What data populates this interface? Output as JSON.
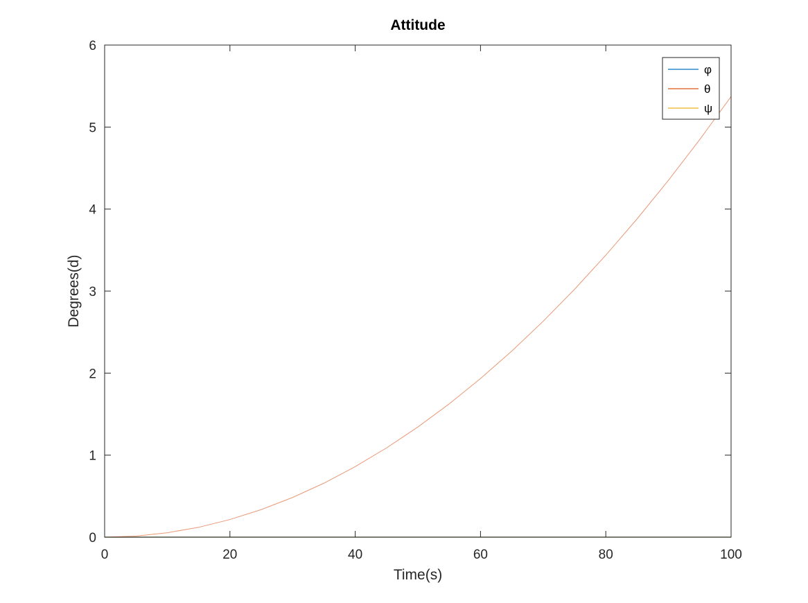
{
  "chart_data": {
    "type": "line",
    "title": "Attitude",
    "xlabel": "Time(s)",
    "ylabel": "Degrees(d)",
    "xlim": [
      0,
      100
    ],
    "ylim": [
      0,
      6
    ],
    "xticks": [
      0,
      20,
      40,
      60,
      80,
      100
    ],
    "yticks": [
      0,
      1,
      2,
      3,
      4,
      5,
      6
    ],
    "grid": false,
    "legend_position": "top-right",
    "x": [
      0,
      5,
      10,
      15,
      20,
      25,
      30,
      35,
      40,
      45,
      50,
      55,
      60,
      65,
      70,
      75,
      80,
      85,
      90,
      95,
      100
    ],
    "series": [
      {
        "name": "φ",
        "color": "#0072BD",
        "values": [
          0,
          0,
          0,
          0,
          0,
          0,
          0,
          0,
          0,
          0,
          0,
          0,
          0,
          0,
          0,
          0,
          0,
          0,
          0,
          0,
          0
        ]
      },
      {
        "name": "θ",
        "color": "#D95319",
        "values": [
          0,
          0.013,
          0.054,
          0.12,
          0.215,
          0.336,
          0.484,
          0.658,
          0.86,
          1.088,
          1.343,
          1.625,
          1.934,
          2.269,
          2.632,
          3.021,
          3.438,
          3.881,
          4.351,
          4.848,
          5.372
        ]
      },
      {
        "name": "ψ",
        "color": "#EDB120",
        "values": [
          0,
          0,
          0,
          0,
          0,
          0,
          0,
          0,
          0,
          0,
          0,
          0,
          0,
          0,
          0,
          0,
          0,
          0,
          0,
          0,
          0
        ]
      }
    ]
  }
}
